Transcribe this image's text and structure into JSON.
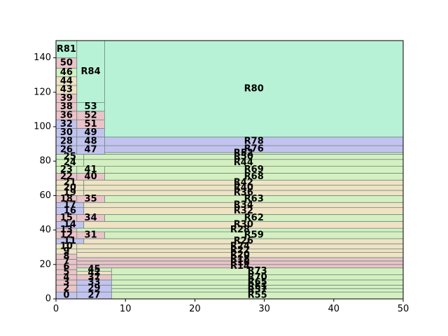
{
  "chart_data": {
    "type": "treemap",
    "title": "",
    "xlabel": "",
    "ylabel": "",
    "xlim": [
      0,
      50
    ],
    "ylim": [
      0,
      150
    ],
    "xticks": [
      0,
      10,
      20,
      30,
      40,
      50
    ],
    "yticks": [
      0,
      20,
      40,
      60,
      80,
      100,
      120,
      140
    ],
    "grid": false,
    "legend": "none",
    "colors": {
      "green": "#b8f2d6",
      "pink": "#ebc3c9",
      "blue": "#c3c3f0",
      "lime": "#d4f0c0",
      "tan": "#efe3c4",
      "edge": "#6f8a80"
    },
    "rectangles": [
      {
        "label": "0",
        "x0": 0,
        "x1": 3,
        "y0": 0,
        "y1": 4,
        "color": "blue"
      },
      {
        "label": "2",
        "x0": 0,
        "x1": 3,
        "y0": 4,
        "y1": 8,
        "color": "pink"
      },
      {
        "label": "3",
        "x0": 0,
        "x1": 3,
        "y0": 8,
        "y1": 11,
        "color": "pink"
      },
      {
        "label": "4",
        "x0": 0,
        "x1": 3,
        "y0": 11,
        "y1": 14,
        "color": "pink"
      },
      {
        "label": "5",
        "x0": 0,
        "x1": 3,
        "y0": 14,
        "y1": 17,
        "color": "pink"
      },
      {
        "label": "6",
        "x0": 0,
        "x1": 3,
        "y0": 17,
        "y1": 20,
        "color": "pink"
      },
      {
        "label": "7",
        "x0": 0,
        "x1": 3,
        "y0": 20,
        "y1": 23,
        "color": "pink"
      },
      {
        "label": "8",
        "x0": 0,
        "x1": 3,
        "y0": 23,
        "y1": 26,
        "color": "pink"
      },
      {
        "label": "9",
        "x0": 0,
        "x1": 3,
        "y0": 26,
        "y1": 29,
        "color": "tan"
      },
      {
        "label": "10",
        "x0": 0,
        "x1": 3,
        "y0": 29,
        "y1": 32,
        "color": "tan"
      },
      {
        "label": "11",
        "x0": 0,
        "x1": 4,
        "y0": 32,
        "y1": 35,
        "color": "blue"
      },
      {
        "label": "12",
        "x0": 0,
        "x1": 3,
        "y0": 35,
        "y1": 39,
        "color": "pink"
      },
      {
        "label": "13",
        "x0": 0,
        "x1": 3,
        "y0": 39,
        "y1": 41,
        "color": "pink"
      },
      {
        "label": "14",
        "x0": 0,
        "x1": 4,
        "y0": 41,
        "y1": 45,
        "color": "blue"
      },
      {
        "label": "15",
        "x0": 0,
        "x1": 3,
        "y0": 45,
        "y1": 49,
        "color": "pink"
      },
      {
        "label": "16",
        "x0": 0,
        "x1": 4,
        "y0": 49,
        "y1": 53,
        "color": "blue"
      },
      {
        "label": "17",
        "x0": 0,
        "x1": 4,
        "y0": 53,
        "y1": 56,
        "color": "blue"
      },
      {
        "label": "18",
        "x0": 0,
        "x1": 3,
        "y0": 56,
        "y1": 60,
        "color": "pink"
      },
      {
        "label": "19",
        "x0": 0,
        "x1": 4,
        "y0": 60,
        "y1": 63,
        "color": "tan"
      },
      {
        "label": "20",
        "x0": 0,
        "x1": 4,
        "y0": 63,
        "y1": 66,
        "color": "tan"
      },
      {
        "label": "21",
        "x0": 0,
        "x1": 4,
        "y0": 66,
        "y1": 69,
        "color": "tan"
      },
      {
        "label": "22",
        "x0": 0,
        "x1": 3,
        "y0": 69,
        "y1": 73,
        "color": "pink"
      },
      {
        "label": "23",
        "x0": 0,
        "x1": 3,
        "y0": 73,
        "y1": 77,
        "color": "lime"
      },
      {
        "label": "24",
        "x0": 0,
        "x1": 4,
        "y0": 77,
        "y1": 81,
        "color": "lime"
      },
      {
        "label": "25",
        "x0": 0,
        "x1": 4,
        "y0": 81,
        "y1": 84,
        "color": "lime"
      },
      {
        "label": "26",
        "x0": 0,
        "x1": 3,
        "y0": 84,
        "y1": 89,
        "color": "blue"
      },
      {
        "label": "28",
        "x0": 0,
        "x1": 3,
        "y0": 89,
        "y1": 94,
        "color": "blue"
      },
      {
        "label": "30",
        "x0": 0,
        "x1": 3,
        "y0": 94,
        "y1": 99,
        "color": "blue"
      },
      {
        "label": "32",
        "x0": 0,
        "x1": 3,
        "y0": 99,
        "y1": 104,
        "color": "blue"
      },
      {
        "label": "36",
        "x0": 0,
        "x1": 3,
        "y0": 104,
        "y1": 109,
        "color": "pink"
      },
      {
        "label": "38",
        "x0": 0,
        "x1": 3,
        "y0": 109,
        "y1": 114,
        "color": "pink"
      },
      {
        "label": "39",
        "x0": 0,
        "x1": 3,
        "y0": 114,
        "y1": 119,
        "color": "pink"
      },
      {
        "label": "43",
        "x0": 0,
        "x1": 3,
        "y0": 119,
        "y1": 124,
        "color": "tan"
      },
      {
        "label": "44",
        "x0": 0,
        "x1": 3,
        "y0": 124,
        "y1": 129,
        "color": "tan"
      },
      {
        "label": "46",
        "x0": 0,
        "x1": 3,
        "y0": 129,
        "y1": 134,
        "color": "lime"
      },
      {
        "label": "50",
        "x0": 0,
        "x1": 3,
        "y0": 134,
        "y1": 140,
        "color": "pink"
      },
      {
        "label": "R81",
        "x0": 0,
        "x1": 3,
        "y0": 140,
        "y1": 150,
        "color": "green"
      },
      {
        "label": "27",
        "x0": 3,
        "x1": 8,
        "y0": 0,
        "y1": 4,
        "color": "blue"
      },
      {
        "label": "29",
        "x0": 3,
        "x1": 8,
        "y0": 4,
        "y1": 8,
        "color": "blue"
      },
      {
        "label": "33",
        "x0": 3,
        "x1": 8,
        "y0": 8,
        "y1": 11,
        "color": "blue"
      },
      {
        "label": "37",
        "x0": 3,
        "x1": 8,
        "y0": 11,
        "y1": 14,
        "color": "pink"
      },
      {
        "label": "42",
        "x0": 3,
        "x1": 8,
        "y0": 14,
        "y1": 16,
        "color": "tan"
      },
      {
        "label": "45",
        "x0": 3,
        "x1": 8,
        "y0": 16,
        "y1": 18,
        "color": "lime"
      },
      {
        "label": "R55",
        "x0": 8,
        "x1": 50,
        "y0": 0,
        "y1": 4,
        "color": "lime"
      },
      {
        "label": "R57",
        "x0": 8,
        "x1": 50,
        "y0": 4,
        "y1": 6,
        "color": "lime"
      },
      {
        "label": "R61",
        "x0": 8,
        "x1": 50,
        "y0": 6,
        "y1": 8,
        "color": "lime"
      },
      {
        "label": "R65",
        "x0": 8,
        "x1": 50,
        "y0": 8,
        "y1": 11,
        "color": "lime"
      },
      {
        "label": "R70",
        "x0": 8,
        "x1": 50,
        "y0": 11,
        "y1": 14,
        "color": "lime"
      },
      {
        "label": "R73",
        "x0": 8,
        "x1": 50,
        "y0": 14,
        "y1": 18,
        "color": "lime"
      },
      {
        "label": "R14",
        "x0": 3,
        "x1": 50,
        "y0": 18,
        "y1": 20,
        "color": "pink"
      },
      {
        "label": "R16",
        "x0": 3,
        "x1": 50,
        "y0": 20,
        "y1": 22,
        "color": "pink"
      },
      {
        "label": "R18",
        "x0": 3,
        "x1": 50,
        "y0": 22,
        "y1": 24,
        "color": "pink"
      },
      {
        "label": "R20",
        "x0": 3,
        "x1": 50,
        "y0": 24,
        "y1": 27,
        "color": "tan"
      },
      {
        "label": "R22",
        "x0": 3,
        "x1": 50,
        "y0": 27,
        "y1": 29,
        "color": "tan"
      },
      {
        "label": "R24",
        "x0": 3,
        "x1": 50,
        "y0": 29,
        "y1": 32,
        "color": "tan"
      },
      {
        "label": "R26",
        "x0": 4,
        "x1": 50,
        "y0": 32,
        "y1": 35,
        "color": "tan"
      },
      {
        "label": "31",
        "x0": 3,
        "x1": 7,
        "y0": 35,
        "y1": 39,
        "color": "pink"
      },
      {
        "label": "R59",
        "x0": 7,
        "x1": 50,
        "y0": 35,
        "y1": 39,
        "color": "lime"
      },
      {
        "label": "R28",
        "x0": 3,
        "x1": 50,
        "y0": 39,
        "y1": 41,
        "color": "lime"
      },
      {
        "label": "R30",
        "x0": 4,
        "x1": 50,
        "y0": 41,
        "y1": 45,
        "color": "tan"
      },
      {
        "label": "34",
        "x0": 3,
        "x1": 7,
        "y0": 45,
        "y1": 49,
        "color": "pink"
      },
      {
        "label": "R62",
        "x0": 7,
        "x1": 50,
        "y0": 45,
        "y1": 49,
        "color": "lime"
      },
      {
        "label": "R32",
        "x0": 4,
        "x1": 50,
        "y0": 49,
        "y1": 53,
        "color": "tan"
      },
      {
        "label": "R34",
        "x0": 4,
        "x1": 50,
        "y0": 53,
        "y1": 56,
        "color": "tan"
      },
      {
        "label": "35",
        "x0": 3,
        "x1": 7,
        "y0": 56,
        "y1": 60,
        "color": "pink"
      },
      {
        "label": "R63",
        "x0": 7,
        "x1": 50,
        "y0": 56,
        "y1": 60,
        "color": "lime"
      },
      {
        "label": "R36",
        "x0": 4,
        "x1": 50,
        "y0": 60,
        "y1": 63,
        "color": "tan"
      },
      {
        "label": "R40",
        "x0": 4,
        "x1": 50,
        "y0": 63,
        "y1": 66,
        "color": "tan"
      },
      {
        "label": "R42",
        "x0": 4,
        "x1": 50,
        "y0": 66,
        "y1": 69,
        "color": "tan"
      },
      {
        "label": "40",
        "x0": 3,
        "x1": 7,
        "y0": 69,
        "y1": 73,
        "color": "pink"
      },
      {
        "label": "R68",
        "x0": 7,
        "x1": 50,
        "y0": 69,
        "y1": 73,
        "color": "lime"
      },
      {
        "label": "41",
        "x0": 3,
        "x1": 7,
        "y0": 73,
        "y1": 77,
        "color": "lime"
      },
      {
        "label": "R69",
        "x0": 7,
        "x1": 50,
        "y0": 73,
        "y1": 77,
        "color": "lime"
      },
      {
        "label": "R44",
        "x0": 4,
        "x1": 50,
        "y0": 77,
        "y1": 81,
        "color": "lime"
      },
      {
        "label": "R50",
        "x0": 4,
        "x1": 50,
        "y0": 81,
        "y1": 84,
        "color": "lime"
      },
      {
        "label": "R52",
        "x0": 4,
        "x1": 50,
        "y0": 84,
        "y1": 85,
        "color": "lime"
      },
      {
        "label": "47",
        "x0": 3,
        "x1": 7,
        "y0": 84,
        "y1": 89,
        "color": "blue"
      },
      {
        "label": "R76",
        "x0": 7,
        "x1": 50,
        "y0": 85,
        "y1": 89,
        "color": "blue"
      },
      {
        "label": "48",
        "x0": 3,
        "x1": 7,
        "y0": 89,
        "y1": 94,
        "color": "blue"
      },
      {
        "label": "R78",
        "x0": 7,
        "x1": 50,
        "y0": 89,
        "y1": 94,
        "color": "blue"
      },
      {
        "label": "49",
        "x0": 3,
        "x1": 7,
        "y0": 94,
        "y1": 99,
        "color": "blue"
      },
      {
        "label": "51",
        "x0": 3,
        "x1": 7,
        "y0": 99,
        "y1": 104,
        "color": "pink"
      },
      {
        "label": "52",
        "x0": 3,
        "x1": 7,
        "y0": 104,
        "y1": 109,
        "color": "pink"
      },
      {
        "label": "53",
        "x0": 3,
        "x1": 7,
        "y0": 109,
        "y1": 114,
        "color": "green"
      },
      {
        "label": "R84",
        "x0": 3,
        "x1": 7,
        "y0": 114,
        "y1": 150,
        "color": "green"
      },
      {
        "label": "R80",
        "x0": 7,
        "x1": 50,
        "y0": 94,
        "y1": 150,
        "color": "green"
      }
    ]
  }
}
